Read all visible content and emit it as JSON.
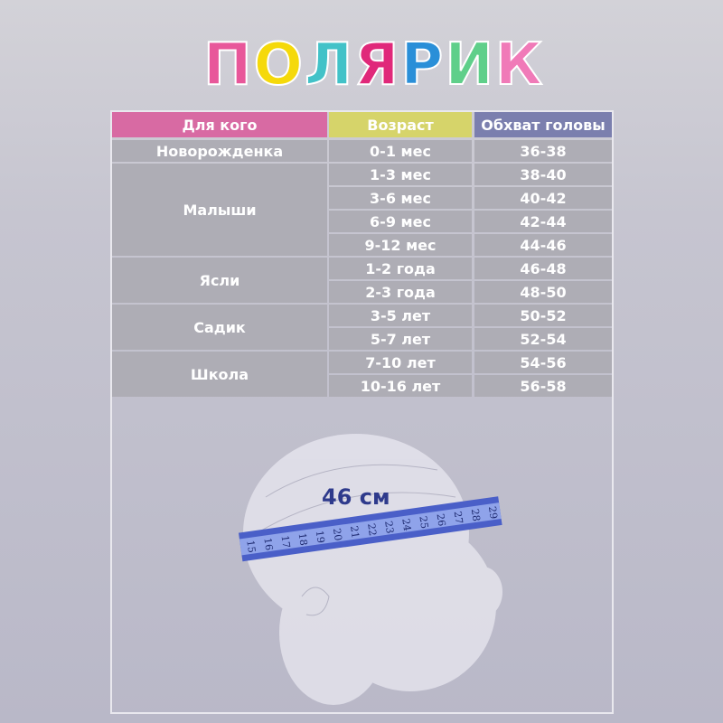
{
  "logo": {
    "text": "ПОЛЯРИК",
    "letter_colors": [
      "#e8579a",
      "#f5d90a",
      "#42c2c8",
      "#e0287a",
      "#2a8fd8",
      "#5fcf8a",
      "#f07ab8",
      "#4a5fb8"
    ]
  },
  "table": {
    "headers": [
      {
        "label": "Для кого",
        "color": "#d86aa3"
      },
      {
        "label": "Возраст",
        "color": "#d6d46a"
      },
      {
        "label": "Обхват головы",
        "color": "#7b7fae"
      }
    ],
    "groups": [
      {
        "label": "Новорожденка",
        "rows": [
          {
            "age": "0-1 мес",
            "size": "36-38"
          }
        ]
      },
      {
        "label": "Малыши",
        "rows": [
          {
            "age": "1-3  мес",
            "size": "38-40"
          },
          {
            "age": "3-6  мес",
            "size": "40-42"
          },
          {
            "age": "6-9  мес",
            "size": "42-44"
          },
          {
            "age": "9-12  мес",
            "size": "44-46"
          }
        ]
      },
      {
        "label": "Ясли",
        "rows": [
          {
            "age": "1-2 года",
            "size": "46-48"
          },
          {
            "age": "2-3 года",
            "size": "48-50"
          }
        ]
      },
      {
        "label": "Садик",
        "rows": [
          {
            "age": "3-5 лет",
            "size": "50-52"
          },
          {
            "age": "5-7 лет",
            "size": "52-54"
          }
        ]
      },
      {
        "label": "Школа",
        "rows": [
          {
            "age": "7-10 лет",
            "size": "54-56"
          },
          {
            "age": "10-16 лет",
            "size": "56-58"
          }
        ]
      }
    ]
  },
  "illustration": {
    "measurement_label": "46 см",
    "tape_numbers": [
      "15",
      "16",
      "17",
      "18",
      "19",
      "20",
      "21",
      "22",
      "23",
      "24",
      "25",
      "26",
      "27",
      "28",
      "29"
    ],
    "tape_color": "#4a5fc8"
  }
}
